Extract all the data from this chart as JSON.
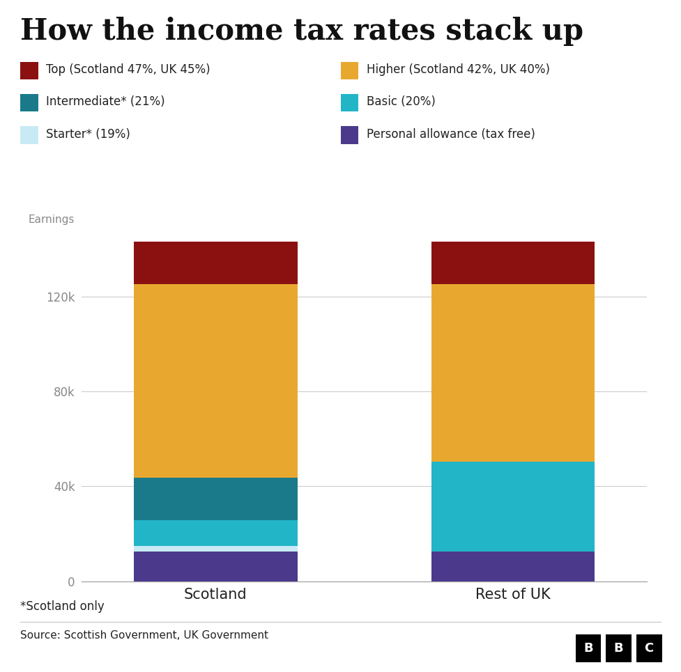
{
  "title": "How the income tax rates stack up",
  "categories": [
    "Scotland",
    "Rest of UK"
  ],
  "segments": {
    "personal_allowance": {
      "label": "Personal allowance (tax free)",
      "color": "#4b3a8c",
      "values": [
        12570,
        12570
      ]
    },
    "starter": {
      "label": "Starter* (19%)",
      "color": "#c8eaf5",
      "values": [
        2162,
        0
      ]
    },
    "basic": {
      "label": "Basic (20%)",
      "color": "#22b5c8",
      "values": [
        10956,
        37700
      ]
    },
    "intermediate": {
      "label": "Intermediate* (21%)",
      "color": "#1a7a8a",
      "values": [
        17974,
        0
      ]
    },
    "higher": {
      "label": "Higher (Scotland 42%, UK 40%)",
      "color": "#e8a830",
      "values": [
        81478,
        74870
      ]
    },
    "top": {
      "label": "Top (Scotland 47%, UK 45%)",
      "color": "#8b1010",
      "values": [
        18000,
        18000
      ]
    }
  },
  "ylabel": "Earnings",
  "yticks": [
    0,
    40000,
    80000,
    120000
  ],
  "ytick_labels": [
    "0",
    "40k",
    "80k",
    "120k"
  ],
  "source": "Source: Scottish Government, UK Government",
  "footnote": "*Scotland only",
  "background_color": "#ffffff",
  "bar_width": 0.55,
  "bar_positions": [
    1,
    2
  ],
  "segment_order": [
    "personal_allowance",
    "starter",
    "basic",
    "intermediate",
    "higher",
    "top"
  ],
  "legend_left": [
    {
      "key": "top",
      "color": "#8b1010",
      "label": "Top (Scotland 47%, UK 45%)"
    },
    {
      "key": "intermediate",
      "color": "#1a7a8a",
      "label": "Intermediate* (21%)"
    },
    {
      "key": "starter",
      "color": "#c8eaf5",
      "label": "Starter* (19%)"
    }
  ],
  "legend_right": [
    {
      "key": "higher",
      "color": "#e8a830",
      "label": "Higher (Scotland 42%, UK 40%)"
    },
    {
      "key": "basic",
      "color": "#22b5c8",
      "label": "Basic (20%)"
    },
    {
      "key": "personal_allowance",
      "color": "#4b3a8c",
      "label": "Personal allowance (tax free)"
    }
  ]
}
